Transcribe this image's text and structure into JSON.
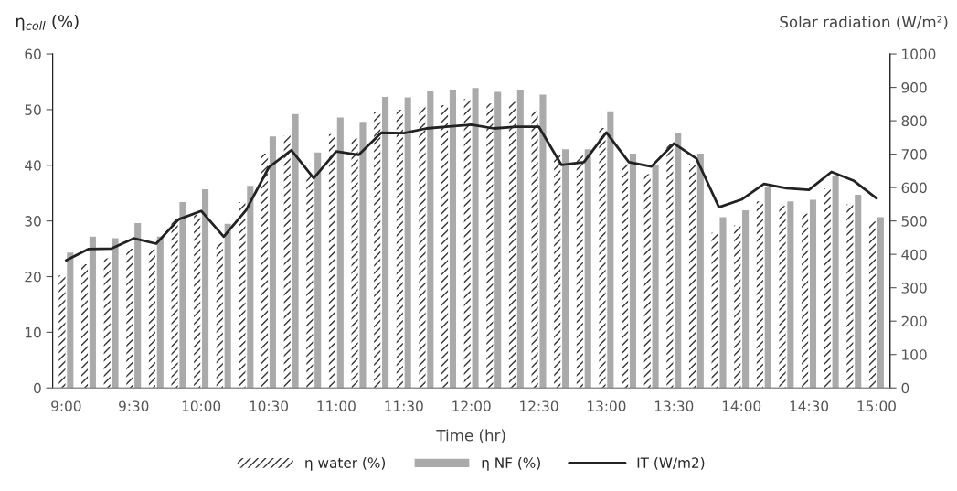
{
  "chart_data": {
    "type": "bar",
    "xlabel": "Time (hr)",
    "ylabel": "η$_{coll}$ (%)",
    "y2label": "Solar radiation (W/m²)",
    "categories": [
      "9:00",
      null,
      null,
      "9:30",
      null,
      null,
      "10:00",
      null,
      null,
      "10:30",
      null,
      null,
      "11:00",
      null,
      null,
      "11:30",
      null,
      null,
      "12:00",
      null,
      null,
      "12:30",
      null,
      null,
      "13:00",
      null,
      null,
      "13:30",
      null,
      null,
      "14:00",
      null,
      null,
      "14:30",
      null,
      null,
      "15:00"
    ],
    "series": [
      {
        "name": "η water (%)",
        "color": "#333333",
        "values": [
          20.2,
          22.2,
          23.3,
          25.0,
          24.9,
          30.4,
          31.1,
          26.1,
          33.4,
          42.1,
          45.4,
          38.0,
          45.6,
          44.8,
          49.5,
          50.0,
          50.5,
          50.8,
          51.9,
          51.1,
          51.4,
          49.7,
          41.8,
          41.8,
          46.7,
          40.2,
          38.4,
          43.8,
          40.3,
          27.9,
          29.2,
          33.5,
          32.7,
          31.3,
          35.8,
          33.0,
          29.9
        ]
      },
      {
        "name": "η NF (%)",
        "color": "#aaaaaa",
        "values": [
          24.3,
          27.2,
          26.9,
          29.6,
          27.2,
          33.4,
          35.7,
          29.5,
          36.3,
          45.2,
          49.2,
          42.3,
          48.6,
          47.8,
          52.3,
          52.2,
          53.3,
          53.6,
          53.9,
          53.2,
          53.6,
          52.7,
          42.9,
          42.9,
          49.7,
          42.1,
          40.0,
          45.7,
          42.1,
          30.7,
          31.9,
          36.1,
          33.5,
          33.8,
          38.1,
          34.7,
          30.7
        ]
      },
      {
        "name": "IT (W/m2)",
        "type": "line",
        "axis": "y2",
        "color": "#222222",
        "values": [
          382,
          416,
          417,
          448,
          432,
          505,
          530,
          453,
          533,
          660,
          712,
          628,
          708,
          698,
          764,
          763,
          777,
          783,
          788,
          777,
          782,
          782,
          668,
          676,
          765,
          676,
          663,
          732,
          687,
          541,
          564,
          611,
          598,
          593,
          647,
          620,
          568
        ]
      }
    ],
    "ylim": [
      0,
      60
    ],
    "yticks": [
      0,
      10,
      20,
      30,
      40,
      50,
      60
    ],
    "y2lim": [
      0,
      1000
    ],
    "y2ticks": [
      0,
      100,
      200,
      300,
      400,
      500,
      600,
      700,
      800,
      900,
      1000
    ],
    "legend": "bottom",
    "marker": "none",
    "line_style": "solid"
  }
}
